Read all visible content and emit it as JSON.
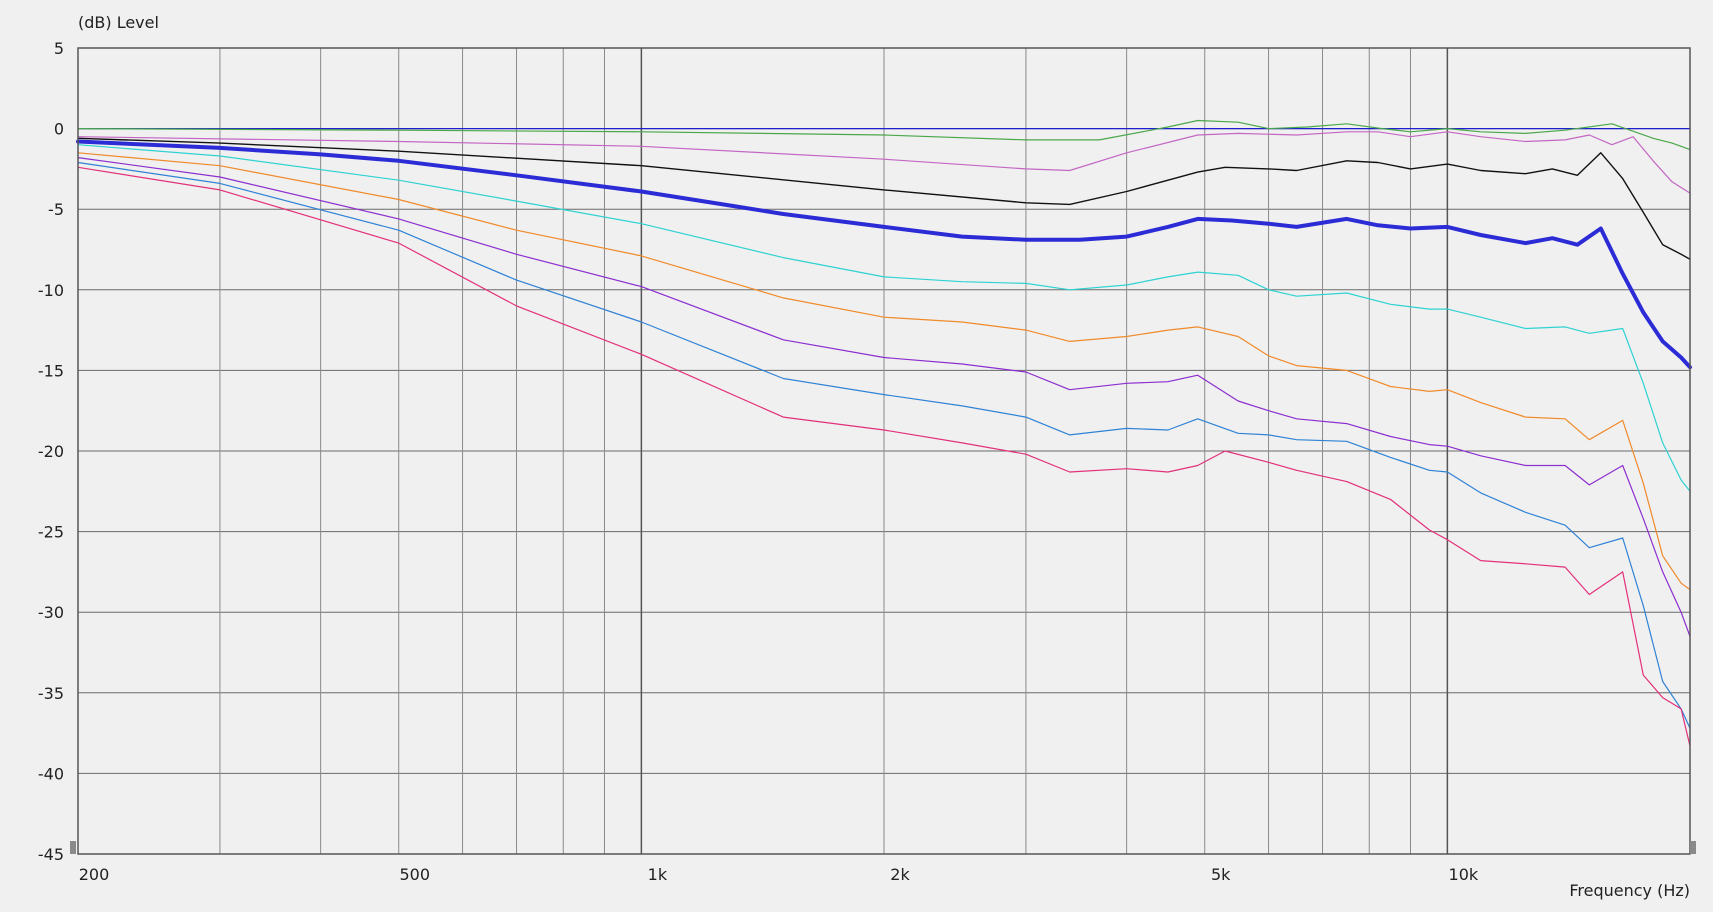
{
  "chart_data": {
    "type": "line",
    "ylabel": "(dB)  Level",
    "xlabel": "Frequency  (Hz)",
    "xscale": "log",
    "xlim": [
      200,
      20000
    ],
    "ylim": [
      -45,
      5
    ],
    "grid": true,
    "y_ticks": [
      5,
      0,
      -5,
      -10,
      -15,
      -20,
      -25,
      -30,
      -35,
      -40,
      -45
    ],
    "x_tick_labels": [
      {
        "value": 200,
        "label": "200"
      },
      {
        "value": 500,
        "label": "500"
      },
      {
        "value": 1000,
        "label": "1k"
      },
      {
        "value": 2000,
        "label": "2k"
      },
      {
        "value": 5000,
        "label": "5k"
      },
      {
        "value": 10000,
        "label": "10k"
      }
    ],
    "x_major_grid": [
      1000,
      10000
    ],
    "x_minor_grid": [
      300,
      400,
      500,
      600,
      700,
      800,
      900,
      2000,
      3000,
      4000,
      5000,
      6000,
      7000,
      8000,
      9000
    ],
    "series": [
      {
        "color": "#1f1fd0",
        "width": 1.2,
        "x": [
          200,
          20000
        ],
        "y": [
          0,
          0
        ]
      },
      {
        "color": "#4aa84a",
        "width": 1.2,
        "x": [
          200,
          500,
          1000,
          2000,
          3000,
          3700,
          4500,
          4900,
          5500,
          6000,
          6700,
          7500,
          8300,
          9000,
          10000,
          11000,
          12500,
          14000,
          16000,
          18000,
          19000,
          20000
        ],
        "y": [
          0.0,
          -0.1,
          -0.2,
          -0.4,
          -0.7,
          -0.7,
          0.1,
          0.5,
          0.4,
          0.0,
          0.1,
          0.3,
          0.0,
          -0.2,
          0.0,
          -0.2,
          -0.3,
          -0.1,
          0.3,
          -0.6,
          -0.9,
          -1.3
        ]
      },
      {
        "color": "#c466c4",
        "width": 1.2,
        "x": [
          200,
          500,
          1000,
          2000,
          3000,
          3400,
          4000,
          4900,
          5500,
          6500,
          7500,
          8200,
          9000,
          10000,
          11000,
          12500,
          14000,
          15000,
          16000,
          17000,
          18000,
          19000,
          20000
        ],
        "y": [
          -0.5,
          -0.8,
          -1.1,
          -1.9,
          -2.5,
          -2.6,
          -1.5,
          -0.4,
          -0.3,
          -0.4,
          -0.2,
          -0.2,
          -0.5,
          -0.2,
          -0.5,
          -0.8,
          -0.7,
          -0.4,
          -1.0,
          -0.5,
          -2.0,
          -3.3,
          -4.0
        ]
      },
      {
        "color": "#111111",
        "width": 1.4,
        "x": [
          200,
          300,
          500,
          1000,
          2000,
          3000,
          3400,
          4000,
          4900,
          5300,
          6000,
          6500,
          7500,
          8200,
          9000,
          10000,
          11000,
          12500,
          13500,
          14500,
          15500,
          16500,
          17500,
          18500,
          19500,
          20000
        ],
        "y": [
          -0.6,
          -0.9,
          -1.4,
          -2.3,
          -3.8,
          -4.6,
          -4.7,
          -3.9,
          -2.7,
          -2.4,
          -2.5,
          -2.6,
          -2.0,
          -2.1,
          -2.5,
          -2.2,
          -2.6,
          -2.8,
          -2.5,
          -2.9,
          -1.5,
          -3.1,
          -5.2,
          -7.2,
          -7.8,
          -8.1
        ]
      },
      {
        "color": "#2c2cd6",
        "width": 4,
        "x": [
          200,
          300,
          400,
          500,
          700,
          1000,
          1300,
          1500,
          2000,
          2500,
          3000,
          3500,
          4000,
          4500,
          4900,
          5400,
          6000,
          6500,
          7500,
          8200,
          9000,
          10000,
          11000,
          12500,
          13500,
          14500,
          15500,
          16500,
          17500,
          18500,
          19500,
          20000
        ],
        "y": [
          -0.8,
          -1.2,
          -1.6,
          -2.0,
          -2.9,
          -3.9,
          -4.8,
          -5.3,
          -6.1,
          -6.7,
          -6.9,
          -6.9,
          -6.7,
          -6.1,
          -5.6,
          -5.7,
          -5.9,
          -6.1,
          -5.6,
          -6.0,
          -6.2,
          -6.1,
          -6.6,
          -7.1,
          -6.8,
          -7.2,
          -6.2,
          -9.0,
          -11.4,
          -13.2,
          -14.2,
          -14.8
        ]
      },
      {
        "color": "#2ed2d2",
        "width": 1.2,
        "x": [
          200,
          300,
          500,
          700,
          1000,
          1500,
          2000,
          2500,
          3000,
          3400,
          4000,
          4500,
          4900,
          5500,
          6000,
          6500,
          7500,
          8500,
          9500,
          10000,
          11000,
          12500,
          14000,
          15000,
          16500,
          17500,
          18500,
          19500,
          20000
        ],
        "y": [
          -1.0,
          -1.7,
          -3.2,
          -4.5,
          -5.9,
          -8.0,
          -9.2,
          -9.5,
          -9.6,
          -10.0,
          -9.7,
          -9.2,
          -8.9,
          -9.1,
          -10.0,
          -10.4,
          -10.2,
          -10.9,
          -11.2,
          -11.2,
          -11.7,
          -12.4,
          -12.3,
          -12.7,
          -12.4,
          -15.8,
          -19.5,
          -21.8,
          -22.5
        ]
      },
      {
        "color": "#f08a2a",
        "width": 1.2,
        "x": [
          200,
          300,
          500,
          700,
          1000,
          1500,
          2000,
          2500,
          3000,
          3400,
          4000,
          4500,
          4900,
          5500,
          6000,
          6500,
          7500,
          8500,
          9500,
          10000,
          11000,
          12500,
          14000,
          15000,
          16500,
          17500,
          18500,
          19500,
          20000
        ],
        "y": [
          -1.5,
          -2.3,
          -4.4,
          -6.3,
          -7.9,
          -10.5,
          -11.7,
          -12.0,
          -12.5,
          -13.2,
          -12.9,
          -12.5,
          -12.3,
          -12.9,
          -14.1,
          -14.7,
          -15.0,
          -16.0,
          -16.3,
          -16.2,
          -17.0,
          -17.9,
          -18.0,
          -19.3,
          -18.1,
          -22.0,
          -26.5,
          -28.2,
          -28.6
        ]
      },
      {
        "color": "#8c2ed0",
        "width": 1.2,
        "x": [
          200,
          300,
          500,
          700,
          1000,
          1500,
          2000,
          2500,
          3000,
          3400,
          4000,
          4500,
          4900,
          5500,
          6000,
          6500,
          7500,
          8500,
          9500,
          10000,
          11000,
          12500,
          14000,
          15000,
          16500,
          17500,
          18500,
          19500,
          20000
        ],
        "y": [
          -1.8,
          -3.0,
          -5.6,
          -7.8,
          -9.8,
          -13.1,
          -14.2,
          -14.6,
          -15.1,
          -16.2,
          -15.8,
          -15.7,
          -15.3,
          -16.9,
          -17.5,
          -18.0,
          -18.3,
          -19.1,
          -19.6,
          -19.7,
          -20.3,
          -20.9,
          -20.9,
          -22.1,
          -20.9,
          -24.2,
          -27.5,
          -30.0,
          -31.5
        ]
      },
      {
        "color": "#2f82d6",
        "width": 1.2,
        "x": [
          200,
          300,
          500,
          700,
          1000,
          1500,
          2000,
          2500,
          3000,
          3400,
          4000,
          4500,
          4900,
          5500,
          6000,
          6500,
          7500,
          8500,
          9500,
          10000,
          11000,
          12500,
          14000,
          15000,
          16500,
          17500,
          18500,
          19500,
          20000
        ],
        "y": [
          -2.1,
          -3.4,
          -6.3,
          -9.4,
          -12.0,
          -15.5,
          -16.5,
          -17.2,
          -17.9,
          -19.0,
          -18.6,
          -18.7,
          -18.0,
          -18.9,
          -19.0,
          -19.3,
          -19.4,
          -20.4,
          -21.2,
          -21.3,
          -22.6,
          -23.8,
          -24.6,
          -26.0,
          -25.4,
          -29.6,
          -34.3,
          -36.0,
          -37.2
        ]
      },
      {
        "color": "#e3307a",
        "width": 1.2,
        "x": [
          200,
          300,
          500,
          700,
          1000,
          1500,
          2000,
          2500,
          3000,
          3400,
          4000,
          4500,
          4900,
          5300,
          6000,
          6500,
          7500,
          8500,
          9500,
          10000,
          11000,
          12500,
          14000,
          15000,
          16500,
          17500,
          18500,
          19500,
          20000
        ],
        "y": [
          -2.4,
          -3.8,
          -7.1,
          -11.0,
          -14.0,
          -17.9,
          -18.7,
          -19.5,
          -20.2,
          -21.3,
          -21.1,
          -21.3,
          -20.9,
          -20.0,
          -20.7,
          -21.2,
          -21.9,
          -23.0,
          -24.9,
          -25.5,
          -26.8,
          -27.0,
          -27.2,
          -28.9,
          -27.5,
          -33.9,
          -35.3,
          -36.0,
          -38.3
        ]
      }
    ]
  }
}
